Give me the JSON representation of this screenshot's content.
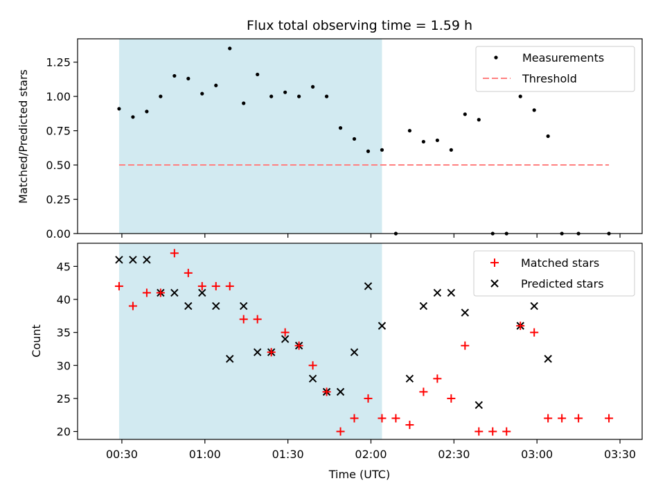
{
  "chart_data": [
    {
      "type": "scatter",
      "title": "Flux total observing time = 1.59 h",
      "ylabel": "Matched/Predicted stars",
      "ylim": [
        0,
        1.42
      ],
      "yticks": [
        "0.00",
        "0.25",
        "0.50",
        "0.75",
        "1.00",
        "1.25"
      ],
      "ytick_values": [
        0,
        0.25,
        0.5,
        0.75,
        1.0,
        1.25
      ],
      "legend_position": "top-right",
      "shaded_region": {
        "x0": "00:29",
        "x1": "02:04",
        "color": "#add8e6"
      },
      "series": [
        {
          "name": "Measurements",
          "marker": "dot",
          "color": "#000000",
          "x": [
            "00:29",
            "00:34",
            "00:39",
            "00:44",
            "00:49",
            "00:54",
            "00:59",
            "01:04",
            "01:09",
            "01:14",
            "01:19",
            "01:24",
            "01:29",
            "01:34",
            "01:39",
            "01:44",
            "01:49",
            "01:54",
            "01:59",
            "02:04",
            "02:09",
            "02:14",
            "02:19",
            "02:24",
            "02:29",
            "02:34",
            "02:39",
            "02:44",
            "02:49",
            "02:54",
            "02:59",
            "03:04",
            "03:09",
            "03:15",
            "03:26"
          ],
          "y": [
            0.91,
            0.85,
            0.89,
            1.0,
            1.15,
            1.13,
            1.02,
            1.08,
            1.35,
            0.95,
            1.16,
            1.0,
            1.03,
            1.0,
            1.07,
            1.0,
            0.77,
            0.69,
            0.6,
            0.61,
            0.0,
            0.75,
            0.67,
            0.68,
            0.61,
            0.87,
            0.83,
            0.0,
            0.0,
            1.0,
            0.9,
            0.71,
            0.0,
            0.0,
            0.0
          ]
        },
        {
          "name": "Threshold",
          "marker": "dashed-line",
          "color": "#ff7f7f",
          "x": [
            "00:29",
            "03:26"
          ],
          "y": [
            0.5,
            0.5
          ]
        }
      ]
    },
    {
      "type": "scatter",
      "xlabel": "Time (UTC)",
      "ylabel": "Count",
      "ylim": [
        18.8,
        48.5
      ],
      "yticks": [
        "20",
        "25",
        "30",
        "35",
        "40",
        "45"
      ],
      "ytick_values": [
        20,
        25,
        30,
        35,
        40,
        45
      ],
      "xlim": [
        "00:14",
        "03:38"
      ],
      "xticks": [
        "00:30",
        "01:00",
        "01:30",
        "02:00",
        "02:30",
        "03:00",
        "03:30"
      ],
      "legend_position": "top-right",
      "shaded_region": {
        "x0": "00:29",
        "x1": "02:04",
        "color": "#add8e6"
      },
      "series": [
        {
          "name": "Matched stars",
          "marker": "plus",
          "color": "#ff0000",
          "x": [
            "00:29",
            "00:34",
            "00:39",
            "00:44",
            "00:49",
            "00:54",
            "00:59",
            "01:04",
            "01:09",
            "01:14",
            "01:19",
            "01:24",
            "01:29",
            "01:34",
            "01:39",
            "01:44",
            "01:49",
            "01:54",
            "01:59",
            "02:04",
            "02:09",
            "02:14",
            "02:19",
            "02:24",
            "02:29",
            "02:34",
            "02:39",
            "02:44",
            "02:49",
            "02:54",
            "02:59",
            "03:04",
            "03:09",
            "03:15",
            "03:26"
          ],
          "y": [
            42,
            39,
            41,
            41,
            47,
            44,
            42,
            42,
            42,
            37,
            37,
            32,
            35,
            33,
            30,
            26,
            20,
            22,
            25,
            22,
            22,
            21,
            26,
            28,
            25,
            33,
            20,
            20,
            20,
            36,
            35,
            22,
            22,
            22,
            22
          ]
        },
        {
          "name": "Predicted stars",
          "marker": "x",
          "color": "#000000",
          "x": [
            "00:29",
            "00:34",
            "00:39",
            "00:44",
            "00:49",
            "00:54",
            "00:59",
            "01:04",
            "01:09",
            "01:14",
            "01:19",
            "01:24",
            "01:29",
            "01:34",
            "01:39",
            "01:44",
            "01:49",
            "01:54",
            "01:59",
            "02:04",
            "02:14",
            "02:19",
            "02:24",
            "02:29",
            "02:34",
            "02:39",
            "02:54",
            "02:59",
            "03:04"
          ],
          "y": [
            46,
            46,
            46,
            41,
            41,
            39,
            41,
            39,
            31,
            39,
            32,
            32,
            34,
            33,
            28,
            26,
            26,
            32,
            42,
            36,
            28,
            39,
            41,
            41,
            38,
            24,
            36,
            39,
            31
          ]
        }
      ]
    }
  ]
}
